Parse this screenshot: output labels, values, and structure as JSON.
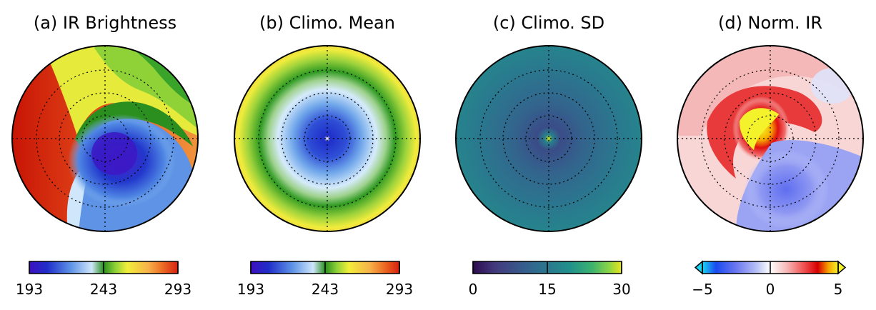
{
  "chart_data": [
    {
      "type": "heatmap",
      "title": "(a) IR Brightness",
      "colormap": [
        "#3d0fbf",
        "#1f2ec9",
        "#5e93e6",
        "#cfe6fb",
        "#2b8f1f",
        "#8fd238",
        "#f2ee3a",
        "#f7b24a",
        "#ec6a23",
        "#d41f10"
      ],
      "colorbar": {
        "ticks": [
          "193",
          "243",
          "293"
        ],
        "range": [
          193,
          293
        ]
      }
    },
    {
      "type": "heatmap",
      "title": "(b) Climo. Mean",
      "colormap": [
        "#3d0fbf",
        "#1f2ec9",
        "#5e93e6",
        "#cfe6fb",
        "#2b8f1f",
        "#8fd238",
        "#f2ee3a",
        "#f7b24a",
        "#ec6a23",
        "#d41f10"
      ],
      "colorbar": {
        "ticks": [
          "193",
          "243",
          "293"
        ],
        "range": [
          193,
          293
        ]
      }
    },
    {
      "type": "heatmap",
      "title": "(c) Climo. SD",
      "colormap": [
        "#2d0b4f",
        "#433a7e",
        "#355f8d",
        "#2a788e",
        "#21908c",
        "#3cb26f",
        "#8ed644",
        "#e9e51a"
      ],
      "colorbar": {
        "ticks": [
          "0",
          "15",
          "30"
        ],
        "range": [
          0,
          30
        ]
      }
    },
    {
      "type": "heatmap",
      "title": "(d) Norm. IR",
      "colormap": [
        "#19d5f1",
        "#1a4af0",
        "#6c78f0",
        "#b7c0f5",
        "#ffffff",
        "#f7b9b9",
        "#f05050",
        "#d60000",
        "#f7a500",
        "#f4f32b"
      ],
      "colorbar": {
        "ticks": [
          "−5",
          "0",
          "5"
        ],
        "range": [
          -5,
          5
        ],
        "extend": "both"
      }
    }
  ]
}
